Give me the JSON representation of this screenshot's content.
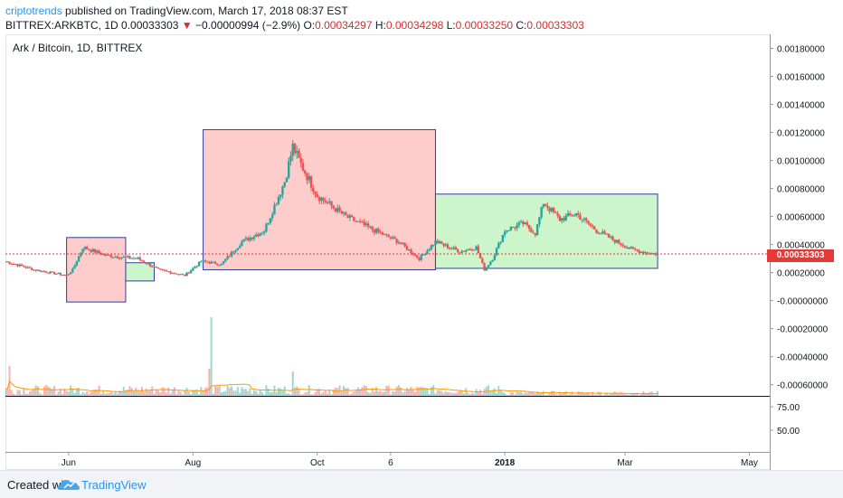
{
  "header": {
    "author": "criptotrends",
    "published_text": "published on TradingView.com, March 17, 2018 08:37 EST",
    "symbol": "BITTREX:ARKBTC, 1D",
    "last": "0.00033303",
    "change": "−0.00000994 (−2.9%)",
    "o_label": "O:",
    "o": "0.00034297",
    "h_label": "H:",
    "h": "0.00034298",
    "l_label": "L:",
    "l": "0.00033250",
    "c_label": "C:",
    "c": "0.00033303"
  },
  "legend_title": "Ark / Bitcoin, 1D, BITTREX",
  "price_label": "0.00033303",
  "footer": {
    "created_with": "Created with",
    "brand": "TradingView"
  },
  "colors": {
    "up": "#26a69a",
    "down": "#ef5350",
    "green_box": "#ccf5cc",
    "red_box": "#ffcccc",
    "box_border": "#303f9f",
    "volume_ma": "#ff9800",
    "price_line": "#e53935"
  },
  "chart_data": {
    "type": "candlestick",
    "title": "Ark / Bitcoin, 1D, BITTREX",
    "price_axis_ticks": [
      "0.00180000",
      "0.00160000",
      "0.00140000",
      "0.00120000",
      "0.00100000",
      "0.00080000",
      "0.00060000",
      "0.00040000",
      "0.00020000",
      "-0.00000000",
      "-0.00020000",
      "-0.00040000",
      "-0.00060000"
    ],
    "ylim": [
      -0.00068,
      0.0019
    ],
    "time_axis_ticks": [
      "Jun",
      "Aug",
      "Oct",
      "6",
      "2018",
      "Mar",
      "May"
    ],
    "indicator_axis_ticks": [
      "75.00",
      "50.00"
    ],
    "last_price": 0.00033303,
    "price_anchors": [
      {
        "date": "2017-05-01",
        "price": 0.00028
      },
      {
        "date": "2017-05-15",
        "price": 0.00022
      },
      {
        "date": "2017-05-31",
        "price": 0.00018
      },
      {
        "date": "2017-06-03",
        "price": 0.00022
      },
      {
        "date": "2017-06-08",
        "price": 0.00038
      },
      {
        "date": "2017-06-20",
        "price": 0.00032
      },
      {
        "date": "2017-07-05",
        "price": 0.0003
      },
      {
        "date": "2017-07-15",
        "price": 0.00022
      },
      {
        "date": "2017-07-28",
        "price": 0.00018
      },
      {
        "date": "2017-08-05",
        "price": 0.00028
      },
      {
        "date": "2017-08-15",
        "price": 0.00026
      },
      {
        "date": "2017-08-25",
        "price": 0.00042
      },
      {
        "date": "2017-09-05",
        "price": 0.0005
      },
      {
        "date": "2017-09-15",
        "price": 0.00085
      },
      {
        "date": "2017-09-19",
        "price": 0.0011
      },
      {
        "date": "2017-09-22",
        "price": 0.001
      },
      {
        "date": "2017-10-01",
        "price": 0.00075
      },
      {
        "date": "2017-10-15",
        "price": 0.0006
      },
      {
        "date": "2017-11-01",
        "price": 0.00048
      },
      {
        "date": "2017-11-10",
        "price": 0.00042
      },
      {
        "date": "2017-11-20",
        "price": 0.0003
      },
      {
        "date": "2017-11-28",
        "price": 0.00042
      },
      {
        "date": "2017-12-10",
        "price": 0.00035
      },
      {
        "date": "2017-12-18",
        "price": 0.00038
      },
      {
        "date": "2017-12-22",
        "price": 0.00022
      },
      {
        "date": "2017-12-26",
        "price": 0.0003
      },
      {
        "date": "2018-01-01",
        "price": 0.0005
      },
      {
        "date": "2018-01-10",
        "price": 0.00055
      },
      {
        "date": "2018-01-16",
        "price": 0.00048
      },
      {
        "date": "2018-01-20",
        "price": 0.0007
      },
      {
        "date": "2018-01-28",
        "price": 0.00058
      },
      {
        "date": "2018-02-05",
        "price": 0.00062
      },
      {
        "date": "2018-02-15",
        "price": 0.0005
      },
      {
        "date": "2018-02-25",
        "price": 0.00042
      },
      {
        "date": "2018-03-05",
        "price": 0.00036
      },
      {
        "date": "2018-03-17",
        "price": 0.00033
      }
    ],
    "boxes": [
      {
        "color": "red",
        "from": "2017-05-31",
        "to": "2017-06-29",
        "high": 0.00045,
        "low": -1e-05
      },
      {
        "color": "green",
        "from": "2017-06-29",
        "to": "2017-07-13",
        "high": 0.00027,
        "low": 0.00014
      },
      {
        "color": "red",
        "from": "2017-08-06",
        "to": "2017-11-28",
        "high": 0.00122,
        "low": 0.00022
      },
      {
        "color": "green",
        "from": "2017-11-28",
        "to": "2018-03-17",
        "high": 0.00076,
        "low": 0.00023
      }
    ],
    "volume_spikes": [
      {
        "date": "2017-08-10",
        "height": 0.58
      },
      {
        "date": "2017-08-09",
        "height": 0.2
      },
      {
        "date": "2017-09-19",
        "height": 0.18
      },
      {
        "date": "2017-05-03",
        "height": 0.22
      }
    ]
  }
}
